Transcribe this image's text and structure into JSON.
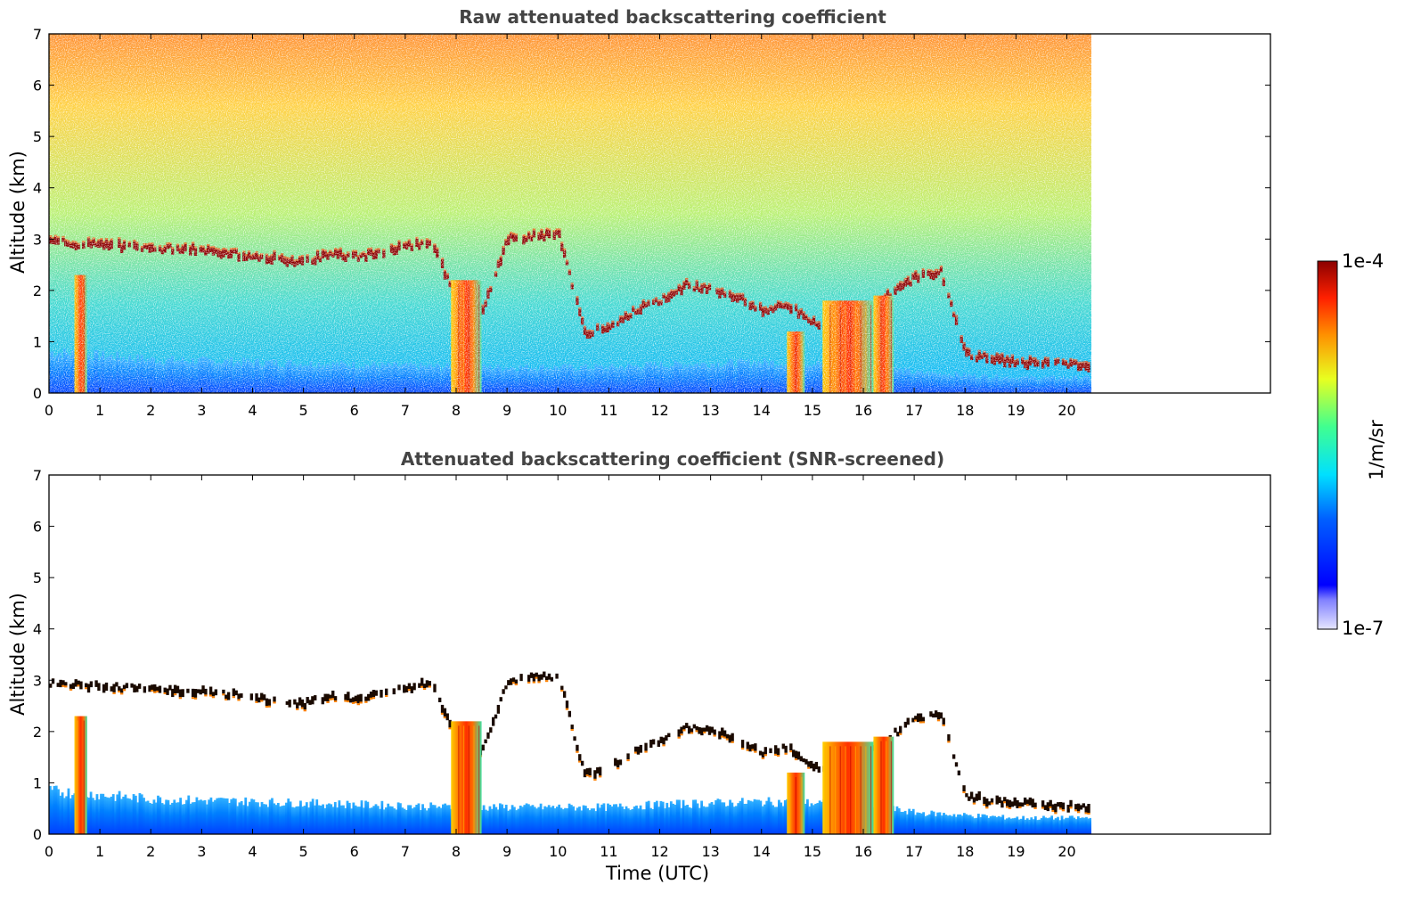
{
  "chart_data": [
    {
      "type": "heatmap",
      "title": "Raw attenuated backscattering coefficient",
      "ylabel": "Altitude (km)",
      "xlabel": "",
      "xlim": [
        0,
        24
      ],
      "ylim": [
        0,
        7
      ],
      "xticks": [
        "0",
        "1",
        "2",
        "3",
        "4",
        "5",
        "6",
        "7",
        "8",
        "9",
        "10",
        "11",
        "12",
        "13",
        "14",
        "15",
        "16",
        "17",
        "18",
        "19",
        "20"
      ],
      "yticks": [
        "0",
        "1",
        "2",
        "3",
        "4",
        "5",
        "6",
        "7"
      ],
      "data_end_time": 20.45,
      "cloud_layer_altitude": [
        [
          0.0,
          2.95
        ],
        [
          0.5,
          2.9
        ],
        [
          1.0,
          2.88
        ],
        [
          1.5,
          2.85
        ],
        [
          2.0,
          2.82
        ],
        [
          2.5,
          2.8
        ],
        [
          3.0,
          2.78
        ],
        [
          3.5,
          2.72
        ],
        [
          4.0,
          2.65
        ],
        [
          4.5,
          2.6
        ],
        [
          5.0,
          2.55
        ],
        [
          5.5,
          2.7
        ],
        [
          6.0,
          2.65
        ],
        [
          6.5,
          2.72
        ],
        [
          7.0,
          2.85
        ],
        [
          7.5,
          2.95
        ],
        [
          8.0,
          1.75
        ],
        [
          8.5,
          1.65
        ],
        [
          9.0,
          3.0
        ],
        [
          9.5,
          3.05
        ],
        [
          10.0,
          3.08
        ],
        [
          10.5,
          1.15
        ],
        [
          11.0,
          1.3
        ],
        [
          11.5,
          1.6
        ],
        [
          12.0,
          1.8
        ],
        [
          12.5,
          2.1
        ],
        [
          13.0,
          2.0
        ],
        [
          13.5,
          1.85
        ],
        [
          14.0,
          1.6
        ],
        [
          14.5,
          1.7
        ],
        [
          15.0,
          1.35
        ],
        [
          15.5,
          1.05
        ],
        [
          16.0,
          1.55
        ],
        [
          16.5,
          1.9
        ],
        [
          17.0,
          2.25
        ],
        [
          17.5,
          2.35
        ],
        [
          18.0,
          0.75
        ],
        [
          18.5,
          0.65
        ],
        [
          19.0,
          0.6
        ],
        [
          19.5,
          0.58
        ],
        [
          20.0,
          0.55
        ],
        [
          20.45,
          0.5
        ]
      ],
      "boundary_layer_top": [
        [
          0.0,
          0.8
        ],
        [
          2.0,
          0.65
        ],
        [
          4.0,
          0.6
        ],
        [
          6.0,
          0.55
        ],
        [
          8.0,
          0.5
        ],
        [
          10.0,
          0.5
        ],
        [
          11.0,
          0.5
        ],
        [
          12.0,
          0.55
        ],
        [
          14.0,
          0.6
        ],
        [
          16.0,
          0.55
        ],
        [
          17.0,
          0.4
        ],
        [
          19.0,
          0.3
        ],
        [
          20.45,
          0.3
        ]
      ],
      "precipitation_shafts": [
        {
          "start": 0.5,
          "end": 0.75,
          "top": 2.3
        },
        {
          "start": 7.9,
          "end": 8.5,
          "top": 2.2
        },
        {
          "start": 14.5,
          "end": 14.85,
          "top": 1.2
        },
        {
          "start": 15.2,
          "end": 16.2,
          "top": 1.8
        },
        {
          "start": 16.2,
          "end": 16.6,
          "top": 1.9
        }
      ]
    },
    {
      "type": "heatmap",
      "title": "Attenuated backscattering coefficient (SNR-screened)",
      "ylabel": "Altitude (km)",
      "xlabel": "Time (UTC)",
      "xlim": [
        0,
        24
      ],
      "ylim": [
        0,
        7
      ],
      "xticks": [
        "0",
        "1",
        "2",
        "3",
        "4",
        "5",
        "6",
        "7",
        "8",
        "9",
        "10",
        "11",
        "12",
        "13",
        "14",
        "15",
        "16",
        "17",
        "18",
        "19",
        "20"
      ],
      "yticks": [
        "0",
        "1",
        "2",
        "3",
        "4",
        "5",
        "6",
        "7"
      ],
      "data_end_time": 20.45
    }
  ],
  "colorbar": {
    "label": "1/m/sr",
    "max_label": "1e-4",
    "min_label": "1e-7",
    "colormap": "jet"
  }
}
